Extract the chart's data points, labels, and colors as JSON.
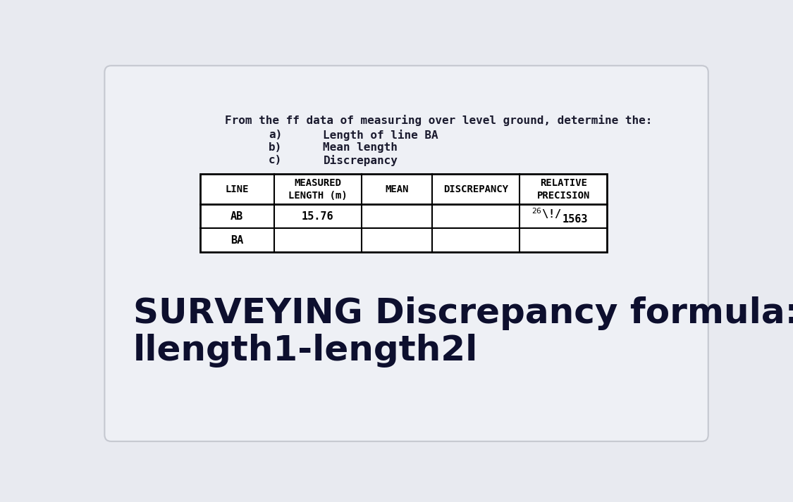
{
  "background_color": "#e8eaf0",
  "card_color": "#eef0f5",
  "title_line": "From the ff data of measuring over level ground, determine the:",
  "items": [
    {
      "label": "a)",
      "text": "Length of line BA"
    },
    {
      "label": "b)",
      "text": "Mean length"
    },
    {
      "label": "c)",
      "text": "Discrepancy"
    }
  ],
  "table_headers": [
    "LINE",
    "MEASURED\nLENGTH (m)",
    "MEAN",
    "DISCREPANCY",
    "RELATIVE\nPRECISION"
  ],
  "table_rows": [
    [
      "AB",
      "15.76",
      "",
      "",
      "26/1563"
    ],
    [
      "BA",
      "",
      "",
      "",
      ""
    ]
  ],
  "footer_line1": "SURVEYING Discrepancy formula:",
  "footer_line2": "llength1-length2l",
  "font_color": "#1a1a2e",
  "mono_font": "DejaVu Sans Mono",
  "sans_font": "DejaVu Sans"
}
